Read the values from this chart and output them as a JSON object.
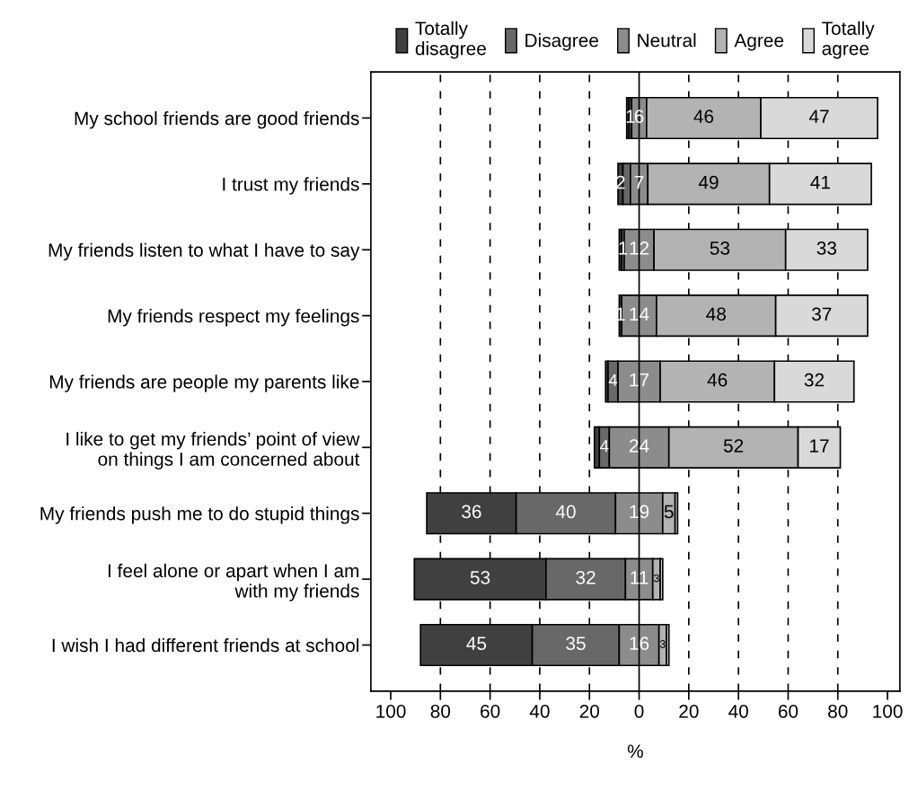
{
  "chart_data": {
    "type": "bar",
    "orientation": "horizontal",
    "xlabel": "%",
    "categories": [
      "My school friends are good friends",
      "I trust my friends",
      "My friends listen to what I have to say",
      "My friends respect my feelings",
      "My friends are people my parents like",
      "I like to get my friends’ point of view\non things I am concerned about",
      "My friends push me to do stupid things",
      "I feel alone or apart when I am\nwith my friends",
      "I wish I had different friends at school"
    ],
    "series": [
      {
        "name": "Totally\ndisagree",
        "color": "#404040",
        "values": [
          1,
          2,
          1,
          1,
          1,
          2,
          36,
          53,
          45
        ],
        "base": [
          -5,
          -8.5,
          -8,
          -8,
          -13.5,
          -18,
          -85.5,
          -90.5,
          -88
        ],
        "value_labels": [
          null,
          "2",
          null,
          "1",
          null,
          null,
          "36",
          "53",
          "45"
        ]
      },
      {
        "name": "Disagree",
        "color": "#686868",
        "values": [
          1,
          3,
          1,
          null,
          4,
          4,
          40,
          32,
          35
        ],
        "base": [
          -4,
          -6.5,
          -7,
          null,
          -12.5,
          -16,
          -49.5,
          -37.5,
          -43
        ],
        "value_labels": [
          "1",
          null,
          "1",
          null,
          "4",
          "4",
          "40",
          "32",
          "35"
        ]
      },
      {
        "name": "Neutral",
        "color": "#8c8c8c",
        "values": [
          6,
          7,
          12,
          14,
          17,
          24,
          19,
          11,
          16
        ],
        "base": [
          -3,
          -3.5,
          -6,
          -7,
          -8.5,
          -12,
          -9.5,
          -5.5,
          -8
        ],
        "value_labels": [
          "6",
          "7",
          "12",
          "14",
          "17",
          "24",
          "19",
          "11",
          "16"
        ]
      },
      {
        "name": "Agree",
        "color": "#b3b3b3",
        "values": [
          46,
          49,
          53,
          48,
          46,
          52,
          5,
          3,
          3
        ],
        "base": [
          3,
          3.5,
          6,
          7,
          8.5,
          12,
          9.5,
          5.5,
          8
        ],
        "value_labels": [
          "46",
          "49",
          "53",
          "48",
          "46",
          "52",
          "5",
          "3",
          "3"
        ]
      },
      {
        "name": "Totally\nagree",
        "color": "#d9d9d9",
        "values": [
          47,
          41,
          33,
          37,
          32,
          17,
          1,
          1,
          1
        ],
        "base": [
          49,
          52.5,
          59,
          55,
          54.5,
          64,
          14.5,
          8.5,
          11
        ],
        "value_labels": [
          "47",
          "41",
          "33",
          "37",
          "32",
          "17",
          null,
          null,
          null
        ]
      }
    ],
    "legend": "top",
    "xlim": [
      -108,
      105
    ],
    "xticks": [
      {
        "value": -100,
        "label": "100"
      },
      {
        "value": -80,
        "label": "80"
      },
      {
        "value": -60,
        "label": "60"
      },
      {
        "value": -40,
        "label": "40"
      },
      {
        "value": -20,
        "label": "20"
      },
      0,
      20,
      40,
      60,
      80,
      100
    ],
    "ref_lines": [
      {
        "axis": "x",
        "value": 0,
        "line_style": "solid",
        "color": "#000000"
      },
      {
        "axis": "x",
        "value": -80,
        "line_style": "dashed",
        "color": "#000000"
      },
      {
        "axis": "x",
        "value": -60,
        "line_style": "dashed",
        "color": "#000000"
      },
      {
        "axis": "x",
        "value": -40,
        "line_style": "dashed",
        "color": "#000000"
      },
      {
        "axis": "x",
        "value": -20,
        "line_style": "dashed",
        "color": "#000000"
      },
      {
        "axis": "x",
        "value": 20,
        "line_style": "dashed",
        "color": "#000000"
      },
      {
        "axis": "x",
        "value": 40,
        "line_style": "dashed",
        "color": "#000000"
      },
      {
        "axis": "x",
        "value": 60,
        "line_style": "dashed",
        "color": "#000000"
      },
      {
        "axis": "x",
        "value": 80,
        "line_style": "dashed",
        "color": "#000000"
      }
    ]
  }
}
